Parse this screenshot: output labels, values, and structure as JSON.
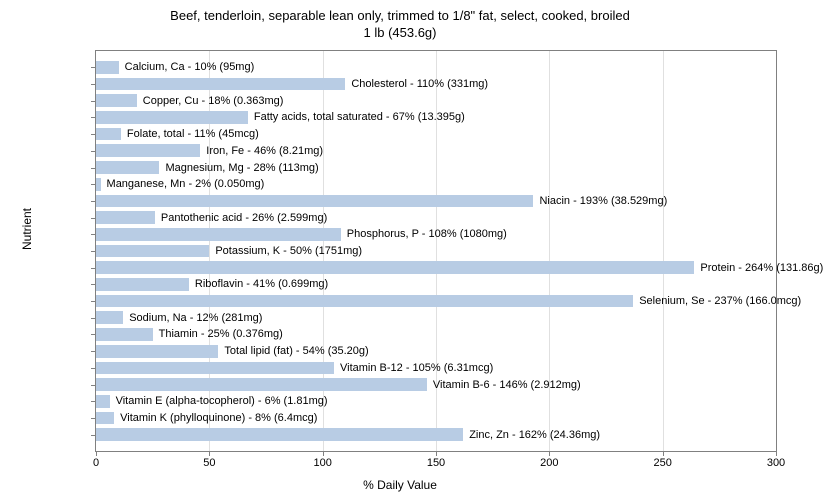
{
  "chart": {
    "type": "bar",
    "title_line1": "Beef, tenderloin, separable lean only, trimmed to 1/8\" fat, select, cooked, broiled",
    "title_line2": "1 lb (453.6g)",
    "title_fontsize": 13,
    "x_axis_label": "% Daily Value",
    "y_axis_label": "Nutrient",
    "label_fontsize": 12,
    "xlim_min": 0,
    "xlim_max": 300,
    "xtick_step": 50,
    "bar_color": "#b8cce4",
    "background_color": "#ffffff",
    "grid_color": "#e0e0e0",
    "border_color": "#808080",
    "text_color": "#000000",
    "bar_label_fontsize": 11,
    "tick_fontsize": 11,
    "nutrients": [
      {
        "label": "Calcium, Ca - 10% (95mg)",
        "value": 10
      },
      {
        "label": "Cholesterol - 110% (331mg)",
        "value": 110
      },
      {
        "label": "Copper, Cu - 18% (0.363mg)",
        "value": 18
      },
      {
        "label": "Fatty acids, total saturated - 67% (13.395g)",
        "value": 67
      },
      {
        "label": "Folate, total - 11% (45mcg)",
        "value": 11
      },
      {
        "label": "Iron, Fe - 46% (8.21mg)",
        "value": 46
      },
      {
        "label": "Magnesium, Mg - 28% (113mg)",
        "value": 28
      },
      {
        "label": "Manganese, Mn - 2% (0.050mg)",
        "value": 2
      },
      {
        "label": "Niacin - 193% (38.529mg)",
        "value": 193
      },
      {
        "label": "Pantothenic acid - 26% (2.599mg)",
        "value": 26
      },
      {
        "label": "Phosphorus, P - 108% (1080mg)",
        "value": 108
      },
      {
        "label": "Potassium, K - 50% (1751mg)",
        "value": 50
      },
      {
        "label": "Protein - 264% (131.86g)",
        "value": 264
      },
      {
        "label": "Riboflavin - 41% (0.699mg)",
        "value": 41
      },
      {
        "label": "Selenium, Se - 237% (166.0mcg)",
        "value": 237
      },
      {
        "label": "Sodium, Na - 12% (281mg)",
        "value": 12
      },
      {
        "label": "Thiamin - 25% (0.376mg)",
        "value": 25
      },
      {
        "label": "Total lipid (fat) - 54% (35.20g)",
        "value": 54
      },
      {
        "label": "Vitamin B-12 - 105% (6.31mcg)",
        "value": 105
      },
      {
        "label": "Vitamin B-6 - 146% (2.912mg)",
        "value": 146
      },
      {
        "label": "Vitamin E (alpha-tocopherol) - 6% (1.81mg)",
        "value": 6
      },
      {
        "label": "Vitamin K (phylloquinone) - 8% (6.4mcg)",
        "value": 8
      },
      {
        "label": "Zinc, Zn - 162% (24.36mg)",
        "value": 162
      }
    ]
  }
}
